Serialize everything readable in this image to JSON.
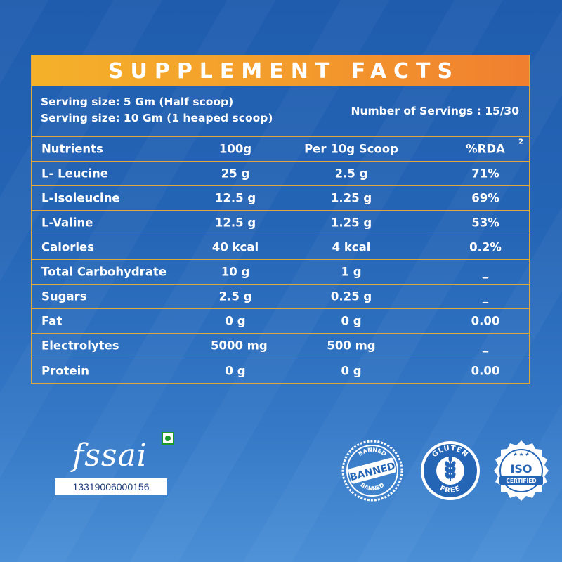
{
  "title": "SUPPLEMENT FACTS",
  "serving": {
    "line1": "Serving size: 5 Gm (Half scoop)",
    "line2": "Serving size: 10 Gm (1 heaped scoop)",
    "servings": "Number of Servings : 15/30"
  },
  "table": {
    "header": [
      "Nutrients",
      "100g",
      "Per 10g Scoop",
      "%RDA"
    ],
    "header_note": "2",
    "rows": [
      [
        "L- Leucine",
        "25 g",
        "2.5 g",
        "71%"
      ],
      [
        "L-Isoleucine",
        "12.5 g",
        "1.25 g",
        "69%"
      ],
      [
        "L-Valine",
        "12.5 g",
        "1.25 g",
        "53%"
      ],
      [
        "Calories",
        "40 kcal",
        "4 kcal",
        "0.2%"
      ],
      [
        "Total Carbohydrate",
        "10 g",
        "1 g",
        "_"
      ],
      [
        "Sugars",
        "2.5 g",
        "0.25 g",
        "_"
      ],
      [
        "Fat",
        "0 g",
        "0 g",
        "0.00"
      ],
      [
        "Electrolytes",
        "5000 mg",
        "500 mg",
        "_"
      ],
      [
        "Protein",
        "0 g",
        "0 g",
        "0.00"
      ]
    ]
  },
  "fssai": {
    "logo_text": "fssai",
    "license": "13319006000156"
  },
  "badges": {
    "banned": {
      "top": "BANNED",
      "center": "BANNED",
      "bottom": "BANNED"
    },
    "gluten": {
      "top": "GLUTEN",
      "bottom": "FREE"
    },
    "iso": {
      "top": "ISO",
      "bottom": "CERTIFIED"
    }
  },
  "colors": {
    "accent": "#e0a640",
    "title_start": "#f5b12a",
    "title_end": "#f07f30",
    "veg_green": "#1a9a2a"
  }
}
